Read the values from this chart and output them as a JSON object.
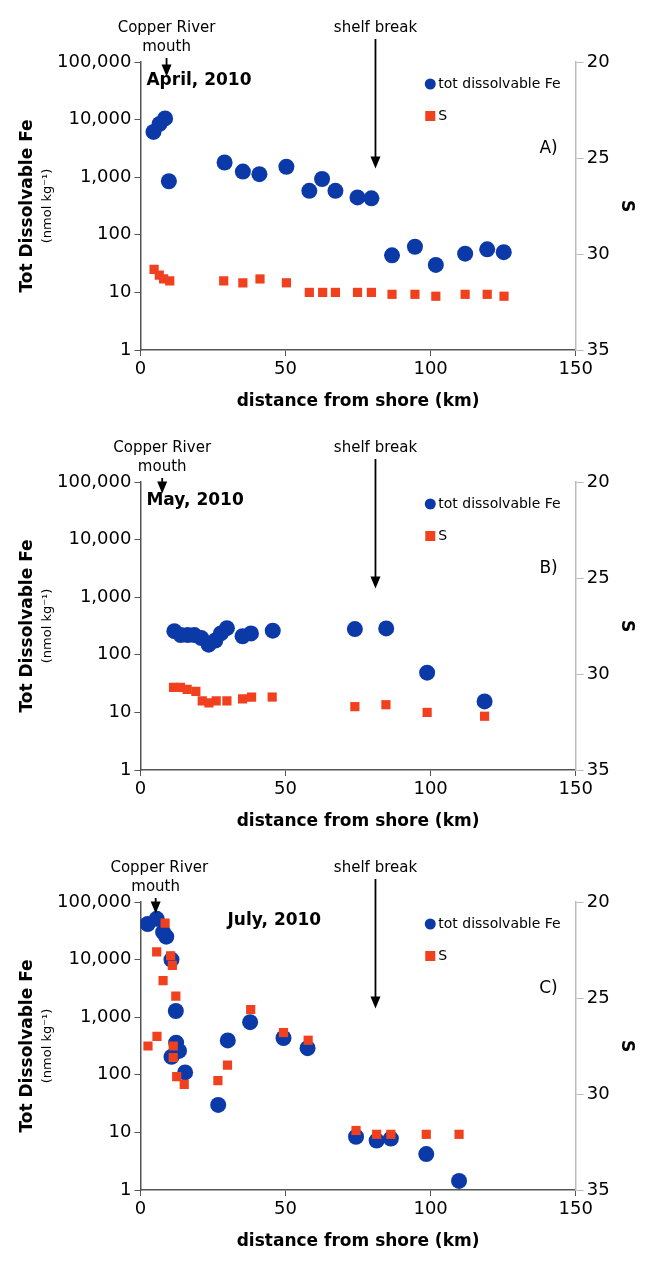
{
  "chart_data": [
    {
      "type": "scatter",
      "title": "April, 2010",
      "xlabel": "distance from shore (km)",
      "ylabel": "Tot Dissolvable Fe (nmol kg⁻¹)",
      "y2label": "S",
      "log": "y",
      "grid": false,
      "legend": "top right",
      "xlim": [
        0,
        150
      ],
      "xticks": [
        0,
        50,
        100,
        150
      ],
      "ylim": [
        1,
        100000
      ],
      "yticks": [
        1,
        10,
        100,
        {
          "value": 1000,
          "label": "1,000"
        },
        {
          "value": 10000,
          "label": "10,000"
        },
        {
          "value": 100000,
          "label": "100,000"
        }
      ],
      "y2lim": [
        35,
        20
      ],
      "y2ticks": [
        20,
        25,
        30,
        35
      ],
      "annotations": [
        "Copper River mouth",
        "shelf break",
        "A)"
      ],
      "series": [
        {
          "name": "tot dissolvable Fe",
          "color": "#0b3aa8",
          "marker": "circle",
          "x": [
            4.5,
            6.6,
            8.5,
            9.8,
            29,
            35.3,
            41,
            50.3,
            58.2,
            62.6,
            67.2,
            74.8,
            79.6,
            86.7,
            94.6,
            101.8,
            111.9,
            119.5,
            125.2
          ],
          "values": [
            6100,
            8400,
            10500,
            850,
            1800,
            1250,
            1130,
            1520,
            580,
            930,
            580,
            445,
            430,
            44,
            62,
            30,
            47,
            56,
            50
          ]
        },
        {
          "name": "S",
          "color": "#f0401e",
          "marker": "square",
          "axis": "y2",
          "x": [
            4.7,
            6.5,
            8.0,
            10.1,
            28.7,
            35.3,
            41.2,
            50.3,
            58.2,
            62.8,
            67.2,
            74.8,
            79.6,
            86.7,
            94.6,
            101.8,
            111.9,
            119.5,
            125.3
          ],
          "values": [
            30.8,
            31.1,
            31.3,
            31.4,
            31.4,
            31.5,
            31.3,
            31.5,
            32.0,
            32.0,
            32.0,
            32.0,
            32.0,
            32.1,
            32.1,
            32.2,
            32.1,
            32.1,
            32.2
          ]
        }
      ]
    },
    {
      "type": "scatter",
      "title": "May, 2010",
      "xlabel": "distance from shore (km)",
      "ylabel": "Tot Dissolvable Fe (nmol kg⁻¹)",
      "y2label": "S",
      "log": "y",
      "grid": false,
      "legend": "top right",
      "xlim": [
        0,
        150
      ],
      "xticks": [
        0,
        50,
        100,
        150
      ],
      "ylim": [
        1,
        100000
      ],
      "yticks": [
        1,
        10,
        100,
        {
          "value": 1000,
          "label": "1,000"
        },
        {
          "value": 10000,
          "label": "10,000"
        },
        {
          "value": 100000,
          "label": "100,000"
        }
      ],
      "y2lim": [
        35,
        20
      ],
      "y2ticks": [
        20,
        25,
        30,
        35
      ],
      "annotations": [
        "Copper River mouth",
        "shelf break",
        "B)"
      ],
      "series": [
        {
          "name": "tot dissolvable Fe",
          "color": "#0b3aa8",
          "marker": "circle",
          "x": [
            11.7,
            13.9,
            16.3,
            18.6,
            21,
            23.5,
            25.8,
            27.7,
            29.8,
            35.2,
            38.1,
            45.6,
            73.9,
            84.7,
            98.8,
            118.6
          ],
          "values": [
            257,
            220,
            220,
            220,
            195,
            150,
            177,
            235,
            290,
            210,
            235,
            262,
            280,
            287,
            49,
            15.5
          ]
        },
        {
          "name": "S",
          "color": "#f0401e",
          "marker": "square",
          "axis": "y2",
          "x": [
            11.4,
            13.8,
            16.1,
            19.1,
            21.3,
            23.6,
            26.1,
            29.8,
            35.2,
            38.3,
            45.4,
            73.9,
            84.6,
            98.8,
            118.6
          ],
          "values": [
            30.7,
            30.7,
            30.8,
            30.9,
            31.4,
            31.5,
            31.4,
            31.4,
            31.3,
            31.2,
            31.2,
            31.7,
            31.6,
            32.0,
            32.2
          ]
        }
      ]
    },
    {
      "type": "scatter",
      "title": "July, 2010",
      "xlabel": "distance from shore (km)",
      "ylabel": "Tot Dissolvable Fe (nmol kg⁻¹)",
      "y2label": "S",
      "log": "y",
      "grid": false,
      "legend": "top right",
      "xlim": [
        0,
        150
      ],
      "xticks": [
        0,
        50,
        100,
        150
      ],
      "ylim": [
        1,
        100000
      ],
      "yticks": [
        1,
        10,
        100,
        {
          "value": 1000,
          "label": "1,000"
        },
        {
          "value": 10000,
          "label": "10,000"
        },
        {
          "value": 100000,
          "label": "100,000"
        }
      ],
      "y2lim": [
        35,
        20
      ],
      "y2ticks": [
        20,
        25,
        30,
        35
      ],
      "annotations": [
        "Copper River mouth",
        "shelf break",
        "C)"
      ],
      "series": [
        {
          "name": "tot dissolvable Fe",
          "color": "#0b3aa8",
          "marker": "circle",
          "x": [
            2.5,
            5.6,
            7.8,
            8.9,
            10.7,
            12.2,
            12.3,
            13.3,
            10.7,
            15.4,
            26.8,
            30.1,
            37.8,
            49.3,
            57.6,
            74.3,
            81.4,
            86.3,
            98.5,
            109.8
          ],
          "values": [
            41500,
            51000,
            30000,
            25000,
            10000,
            1280,
            360,
            260,
            205,
            110,
            30,
            395,
            820,
            435,
            290,
            8.4,
            7.2,
            7.8,
            4.2,
            1.44
          ]
        },
        {
          "name": "S",
          "color": "#f0401e",
          "marker": "square",
          "axis": "y2",
          "x": [
            8.5,
            5.6,
            10.4,
            11,
            7.8,
            12.2,
            2.6,
            5.7,
            11.3,
            11.3,
            12.5,
            15.1,
            26.7,
            30,
            38,
            49.3,
            57.8,
            74.3,
            81.4,
            86.3,
            98.5,
            109.8
          ],
          "values": [
            21.1,
            22.6,
            22.8,
            23.3,
            24.1,
            24.9,
            27.5,
            27.0,
            27.5,
            28.1,
            29.1,
            29.5,
            29.3,
            28.5,
            25.6,
            26.8,
            27.2,
            31.9,
            32.1,
            32.1,
            32.1,
            32.1
          ]
        }
      ]
    }
  ]
}
